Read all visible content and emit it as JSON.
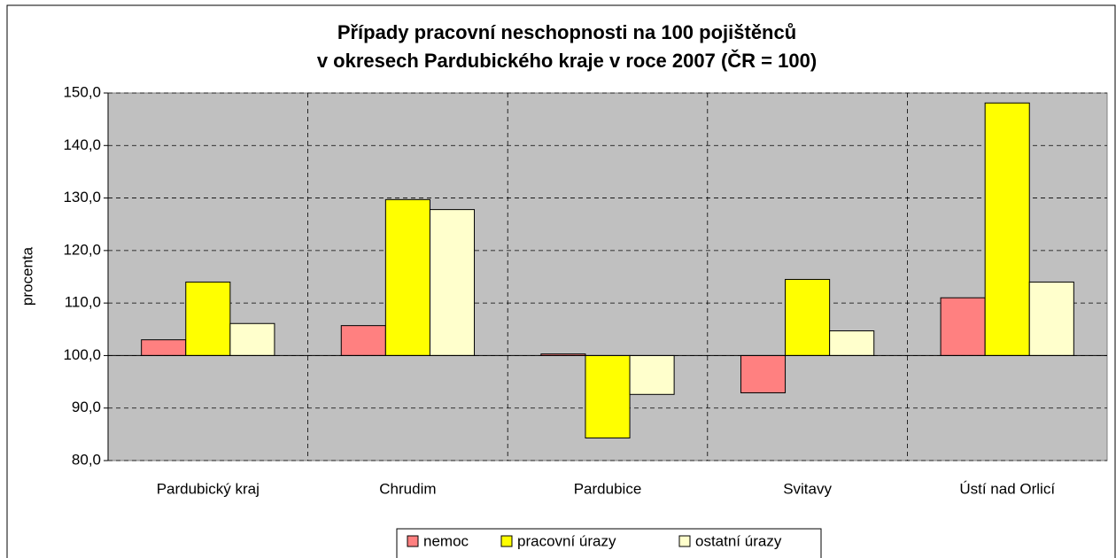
{
  "chart_data": {
    "type": "bar",
    "title": [
      "Případy pracovní neschopnosti na 100 pojištěnců",
      "v okresech Pardubického kraje v roce 2007 (ČR = 100)"
    ],
    "y_label": "procenta",
    "categories": [
      "Pardubický kraj",
      "Chrudim",
      "Pardubice",
      "Svitavy",
      "Ústí nad Orlicí"
    ],
    "series": [
      {
        "name": "nemoc",
        "color": "#ff8080",
        "values": [
          103.0,
          105.7,
          100.3,
          92.9,
          111.0
        ]
      },
      {
        "name": "pracovní úrazy",
        "color": "#ffff00",
        "values": [
          114.0,
          129.7,
          84.3,
          114.5,
          148.1
        ]
      },
      {
        "name": "ostatní úrazy",
        "color": "#ffffcc",
        "values": [
          106.1,
          127.8,
          92.6,
          104.7,
          114.0
        ]
      }
    ],
    "baseline": 100,
    "ylim": [
      80,
      150
    ],
    "yticks": [
      {
        "value": 80,
        "label": "80,0"
      },
      {
        "value": 90,
        "label": "90,0"
      },
      {
        "value": 100,
        "label": "100,0"
      },
      {
        "value": 110,
        "label": "110,0"
      },
      {
        "value": 120,
        "label": "120,0"
      },
      {
        "value": 130,
        "label": "130,0"
      },
      {
        "value": 140,
        "label": "140,0"
      },
      {
        "value": 150,
        "label": "150,0"
      }
    ],
    "grid": true,
    "legend": "bottom",
    "plot_background": "#c0c0c0"
  }
}
